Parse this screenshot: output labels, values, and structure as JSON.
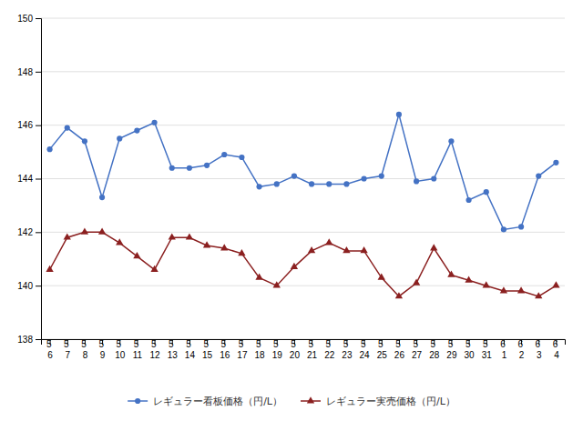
{
  "chart_data": {
    "type": "line",
    "categories": [
      "5\n6",
      "5\n7",
      "5\n8",
      "5\n9",
      "5\n10",
      "5\n11",
      "5\n12",
      "5\n13",
      "5\n14",
      "5\n15",
      "5\n16",
      "5\n17",
      "5\n18",
      "5\n19",
      "5\n20",
      "5\n21",
      "5\n22",
      "5\n23",
      "5\n24",
      "5\n25",
      "5\n26",
      "5\n27",
      "5\n28",
      "5\n29",
      "5\n30",
      "5\n31",
      "6\n1",
      "6\n2",
      "6\n3",
      "6\n4"
    ],
    "series": [
      {
        "name": "レギュラー看板価格（円/L）",
        "color": "#4472C4",
        "marker": "circle",
        "values": [
          145.1,
          145.9,
          145.4,
          143.3,
          145.5,
          145.8,
          146.1,
          144.4,
          144.4,
          144.5,
          144.9,
          144.8,
          143.7,
          143.8,
          144.1,
          143.8,
          143.8,
          143.8,
          144.0,
          144.1,
          146.4,
          143.9,
          144.0,
          145.4,
          143.2,
          143.5,
          142.1,
          142.2,
          144.1,
          144.6
        ]
      },
      {
        "name": "レギュラー実売価格（円/L）",
        "color": "#8B2020",
        "marker": "triangle",
        "values": [
          140.6,
          141.8,
          142.0,
          142.0,
          141.6,
          141.1,
          140.6,
          141.8,
          141.8,
          141.5,
          141.4,
          141.2,
          140.3,
          140.0,
          140.7,
          141.3,
          141.6,
          141.3,
          141.3,
          140.3,
          139.6,
          140.1,
          141.4,
          140.4,
          140.2,
          140.0,
          139.8,
          139.8,
          139.6,
          140.0
        ]
      }
    ],
    "ylim": [
      138,
      150
    ],
    "yticks": [
      138,
      140,
      142,
      144,
      146,
      148,
      150
    ],
    "grid": true,
    "legend": "bottom"
  }
}
